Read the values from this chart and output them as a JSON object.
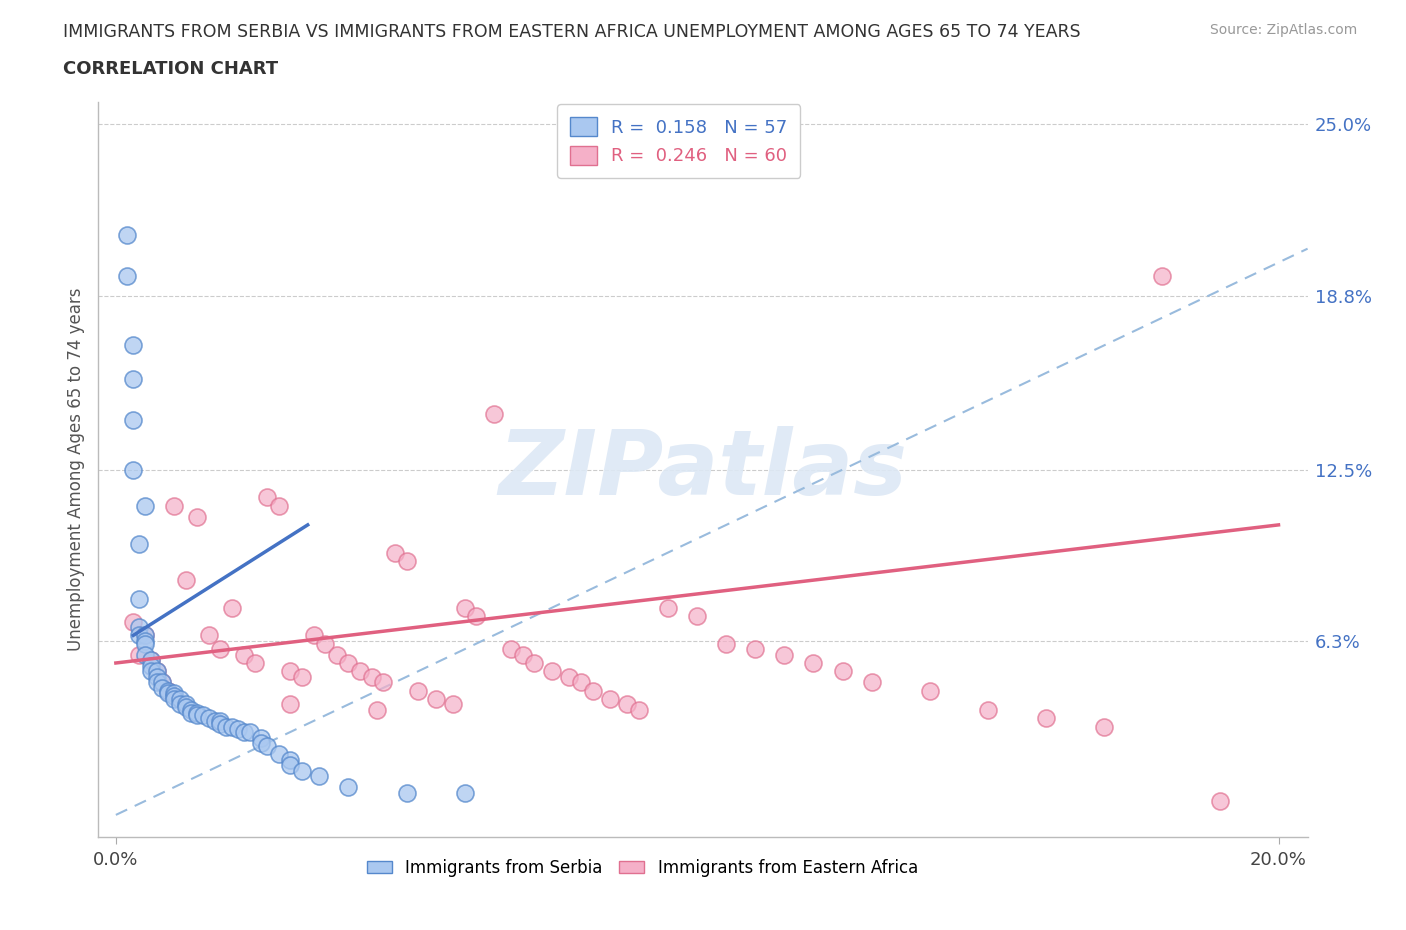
{
  "title_line1": "IMMIGRANTS FROM SERBIA VS IMMIGRANTS FROM EASTERN AFRICA UNEMPLOYMENT AMONG AGES 65 TO 74 YEARS",
  "title_line2": "CORRELATION CHART",
  "source_text": "Source: ZipAtlas.com",
  "ylabel": "Unemployment Among Ages 65 to 74 years",
  "xlim": [
    0.0,
    0.2
  ],
  "ylim": [
    0.0,
    0.25
  ],
  "xtick_labels": [
    "0.0%",
    "20.0%"
  ],
  "xtick_positions": [
    0.0,
    0.2
  ],
  "ytick_labels": [
    "6.3%",
    "12.5%",
    "18.8%",
    "25.0%"
  ],
  "ytick_positions": [
    0.063,
    0.125,
    0.188,
    0.25
  ],
  "serbia_color": "#aac8f0",
  "serbia_edge_color": "#5588cc",
  "eastern_africa_color": "#f5b0c8",
  "eastern_africa_edge_color": "#e07090",
  "trendline_color_serbia": "#4472c4",
  "trendline_color_ea": "#e06080",
  "diagonal_color": "#99bbdd",
  "R_serbia": 0.158,
  "N_serbia": 57,
  "R_ea": 0.246,
  "N_ea": 60,
  "watermark": "ZIPatlas",
  "serbia_scatter_x": [
    0.002,
    0.002,
    0.003,
    0.003,
    0.003,
    0.004,
    0.004,
    0.004,
    0.004,
    0.005,
    0.005,
    0.005,
    0.005,
    0.006,
    0.006,
    0.006,
    0.007,
    0.007,
    0.007,
    0.008,
    0.008,
    0.009,
    0.009,
    0.01,
    0.01,
    0.01,
    0.011,
    0.011,
    0.012,
    0.012,
    0.013,
    0.013,
    0.014,
    0.014,
    0.015,
    0.016,
    0.017,
    0.018,
    0.018,
    0.019,
    0.02,
    0.021,
    0.022,
    0.023,
    0.025,
    0.025,
    0.026,
    0.028,
    0.03,
    0.03,
    0.032,
    0.035,
    0.04,
    0.05,
    0.06,
    0.003,
    0.005
  ],
  "serbia_scatter_y": [
    0.21,
    0.195,
    0.17,
    0.158,
    0.143,
    0.098,
    0.078,
    0.068,
    0.065,
    0.065,
    0.063,
    0.062,
    0.058,
    0.056,
    0.054,
    0.052,
    0.052,
    0.05,
    0.048,
    0.048,
    0.046,
    0.045,
    0.044,
    0.044,
    0.043,
    0.042,
    0.042,
    0.04,
    0.04,
    0.039,
    0.038,
    0.037,
    0.037,
    0.036,
    0.036,
    0.035,
    0.034,
    0.034,
    0.033,
    0.032,
    0.032,
    0.031,
    0.03,
    0.03,
    0.028,
    0.026,
    0.025,
    0.022,
    0.02,
    0.018,
    0.016,
    0.014,
    0.01,
    0.008,
    0.008,
    0.125,
    0.112
  ],
  "ea_scatter_x": [
    0.003,
    0.004,
    0.005,
    0.006,
    0.007,
    0.008,
    0.009,
    0.01,
    0.012,
    0.014,
    0.016,
    0.018,
    0.02,
    0.022,
    0.024,
    0.026,
    0.028,
    0.03,
    0.032,
    0.034,
    0.036,
    0.038,
    0.04,
    0.042,
    0.044,
    0.046,
    0.048,
    0.05,
    0.052,
    0.055,
    0.058,
    0.06,
    0.062,
    0.065,
    0.068,
    0.07,
    0.072,
    0.075,
    0.078,
    0.08,
    0.082,
    0.085,
    0.088,
    0.09,
    0.095,
    0.1,
    0.105,
    0.11,
    0.115,
    0.12,
    0.125,
    0.13,
    0.14,
    0.15,
    0.16,
    0.17,
    0.18,
    0.19,
    0.03,
    0.045
  ],
  "ea_scatter_y": [
    0.07,
    0.058,
    0.065,
    0.056,
    0.052,
    0.048,
    0.045,
    0.112,
    0.085,
    0.108,
    0.065,
    0.06,
    0.075,
    0.058,
    0.055,
    0.115,
    0.112,
    0.052,
    0.05,
    0.065,
    0.062,
    0.058,
    0.055,
    0.052,
    0.05,
    0.048,
    0.095,
    0.092,
    0.045,
    0.042,
    0.04,
    0.075,
    0.072,
    0.145,
    0.06,
    0.058,
    0.055,
    0.052,
    0.05,
    0.048,
    0.045,
    0.042,
    0.04,
    0.038,
    0.075,
    0.072,
    0.062,
    0.06,
    0.058,
    0.055,
    0.052,
    0.048,
    0.045,
    0.038,
    0.035,
    0.032,
    0.195,
    0.005,
    0.04,
    0.038
  ]
}
